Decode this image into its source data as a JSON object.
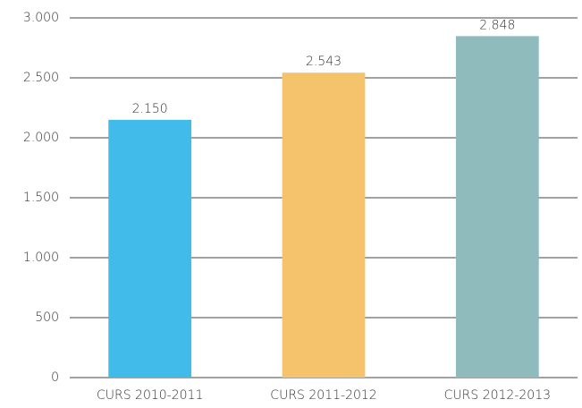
{
  "chart_data": {
    "type": "bar",
    "categories": [
      "CURS 2010-2011",
      "CURS 2011-2012",
      "CURS 2012-2013"
    ],
    "values": [
      2150,
      2543,
      2848
    ],
    "value_labels": [
      "2.150",
      "2.543",
      "2.848"
    ],
    "colors": [
      "#41bbea",
      "#f4c36b",
      "#8fbbbd"
    ],
    "ylim": [
      0,
      3000
    ],
    "yticks": [
      0,
      500,
      {
        "value": 1000,
        "label": "1.000"
      },
      {
        "value": 1500,
        "label": "1.500"
      },
      {
        "value": 2000,
        "label": "2.000"
      },
      {
        "value": 2500,
        "label": "2.500"
      },
      {
        "value": 3000,
        "label": "3.000"
      }
    ],
    "grid": true
  }
}
